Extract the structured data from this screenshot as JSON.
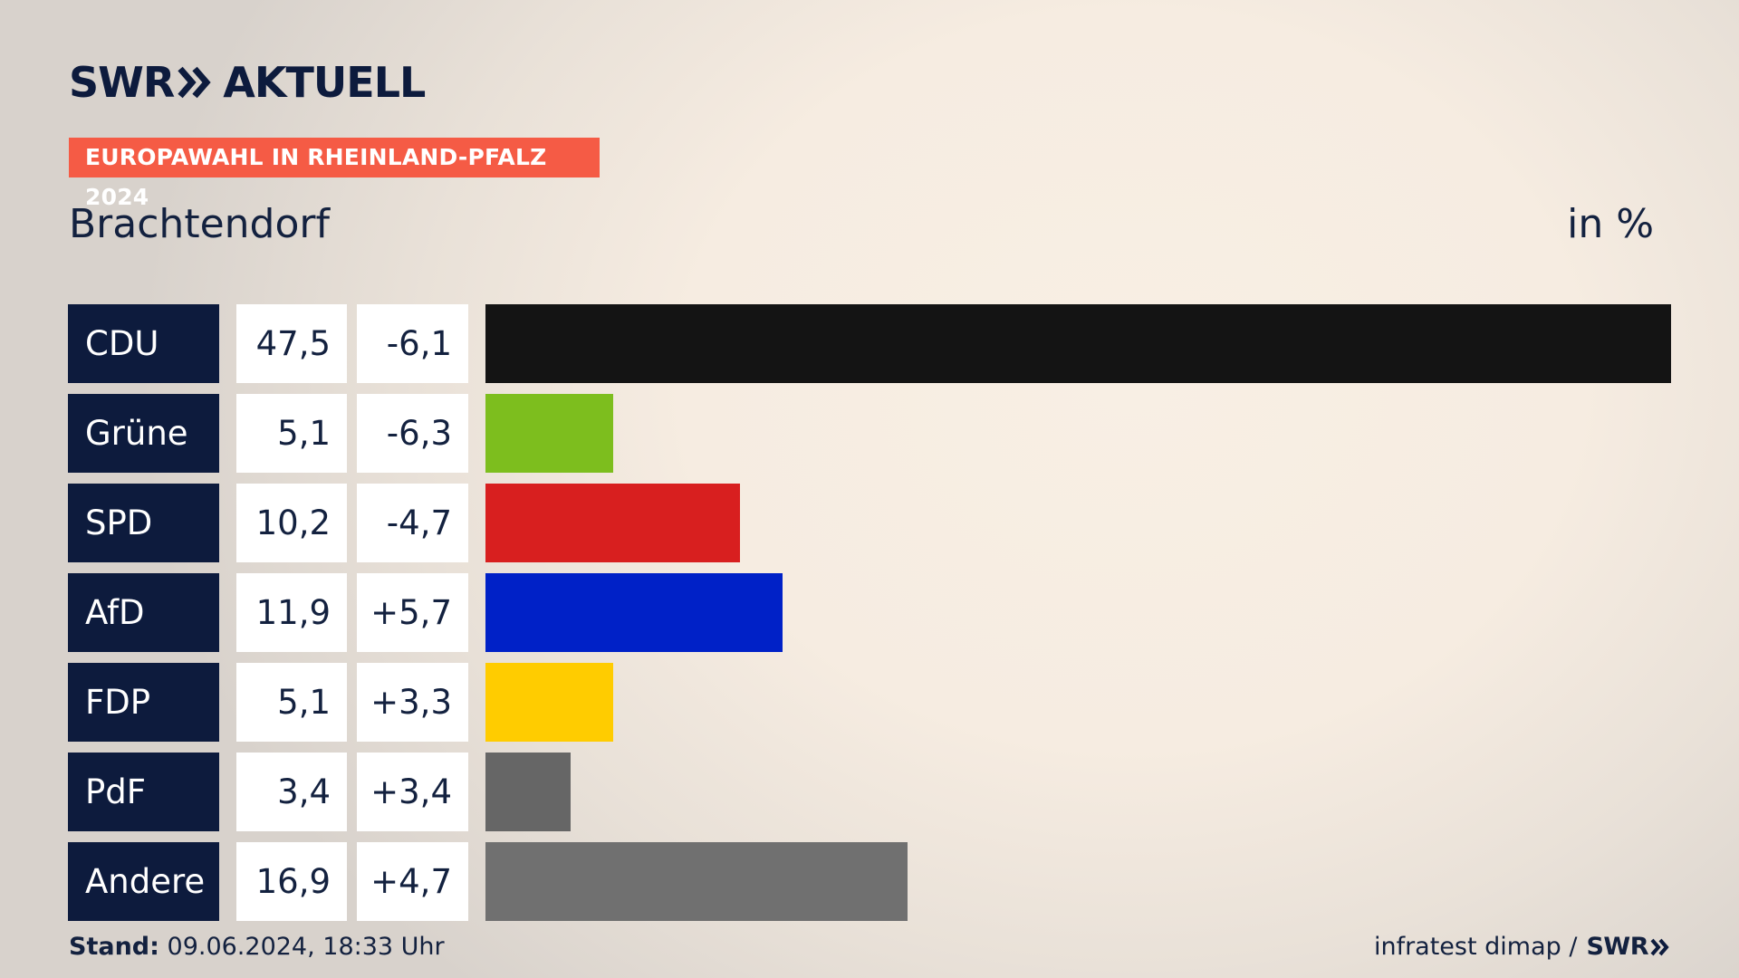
{
  "brand": {
    "logo_left": "SWR",
    "logo_right": "AKTUELL",
    "logo_icon": "double-chevron-icon",
    "color": "#0d1b3d"
  },
  "tag": {
    "label": "EUROPAWAHL IN RHEINLAND-PFALZ 2024",
    "color": "#f55b45"
  },
  "title": "Brachtendorf",
  "unit_label": "in %",
  "footer": {
    "stand_label": "Stand:",
    "stand_value": "09.06.2024, 18:33 Uhr",
    "source": "infratest dimap /",
    "source_brand": "SWR"
  },
  "chart_data": {
    "type": "bar",
    "orientation": "horizontal",
    "categories": [
      "CDU",
      "Grüne",
      "SPD",
      "AfD",
      "FDP",
      "PdF",
      "Andere"
    ],
    "values": [
      47.5,
      5.1,
      10.2,
      11.9,
      5.1,
      3.4,
      16.9
    ],
    "value_labels": [
      "47,5",
      "5,1",
      "10,2",
      "11,9",
      "5,1",
      "3,4",
      "16,9"
    ],
    "changes": [
      -6.1,
      -6.3,
      -4.7,
      5.7,
      3.3,
      3.4,
      4.7
    ],
    "change_labels": [
      "-6,1",
      "-6,3",
      "-4,7",
      "+5,7",
      "+3,3",
      "+3,4",
      "+4,7"
    ],
    "colors": [
      "#141414",
      "#7dbe1e",
      "#d81f1f",
      "#0021c7",
      "#ffcc00",
      "#666666",
      "#707070"
    ],
    "xlim": [
      0,
      47.5
    ],
    "grid": false
  }
}
